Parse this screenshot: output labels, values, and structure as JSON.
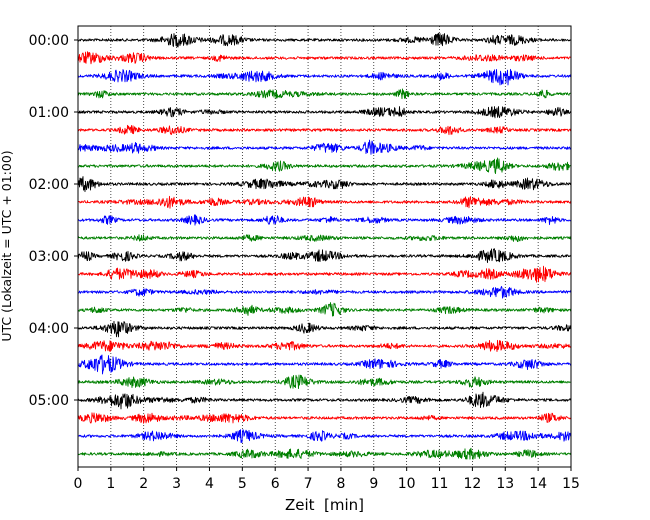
{
  "chart_data": {
    "type": "line",
    "title": "",
    "xlabel": "Zeit  [min]",
    "ylabel": "UTC (Lokalzeit = UTC + 01:00)",
    "xlim": [
      0,
      15
    ],
    "x_ticks": [
      "0",
      "1",
      "2",
      "3",
      "4",
      "5",
      "6",
      "7",
      "8",
      "9",
      "10",
      "11",
      "12",
      "13",
      "14",
      "15"
    ],
    "y_ticks": [
      "00:00",
      "01:00",
      "02:00",
      "03:00",
      "04:00",
      "05:00"
    ],
    "minutes_per_trace": 15,
    "trace_count": 24,
    "vertical_grid": "dotted, every 1 min",
    "legend": "none",
    "color_cycle": [
      "#000000",
      "#ff0000",
      "#0000ff",
      "#008000"
    ],
    "series": [
      {
        "start": "00:00",
        "color": "#000000"
      },
      {
        "start": "00:15",
        "color": "#ff0000"
      },
      {
        "start": "00:30",
        "color": "#0000ff"
      },
      {
        "start": "00:45",
        "color": "#008000"
      },
      {
        "start": "01:00",
        "color": "#000000"
      },
      {
        "start": "01:15",
        "color": "#ff0000"
      },
      {
        "start": "01:30",
        "color": "#0000ff"
      },
      {
        "start": "01:45",
        "color": "#008000"
      },
      {
        "start": "02:00",
        "color": "#000000"
      },
      {
        "start": "02:15",
        "color": "#ff0000"
      },
      {
        "start": "02:30",
        "color": "#0000ff"
      },
      {
        "start": "02:45",
        "color": "#008000"
      },
      {
        "start": "03:00",
        "color": "#000000"
      },
      {
        "start": "03:15",
        "color": "#ff0000"
      },
      {
        "start": "03:30",
        "color": "#0000ff"
      },
      {
        "start": "03:45",
        "color": "#008000"
      },
      {
        "start": "04:00",
        "color": "#000000"
      },
      {
        "start": "04:15",
        "color": "#ff0000"
      },
      {
        "start": "04:30",
        "color": "#0000ff"
      },
      {
        "start": "04:45",
        "color": "#008000"
      },
      {
        "start": "05:00",
        "color": "#000000"
      },
      {
        "start": "05:15",
        "color": "#ff0000"
      },
      {
        "start": "05:30",
        "color": "#0000ff"
      },
      {
        "start": "05:45",
        "color": "#008000"
      }
    ]
  }
}
